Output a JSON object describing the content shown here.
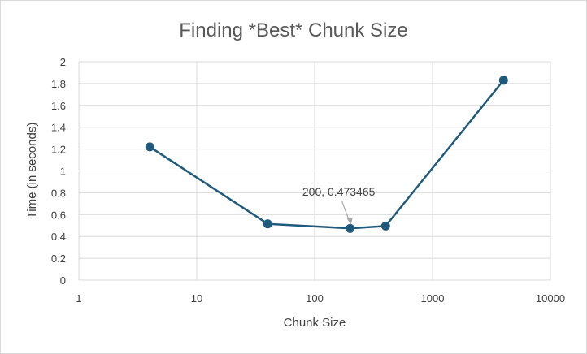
{
  "chart_data": {
    "type": "scatter",
    "title": "Finding *Best* Chunk Size",
    "xlabel": "Chunk Size",
    "ylabel": "Time (in seconds)",
    "x_scale": "log",
    "xlim": [
      1,
      10000
    ],
    "ylim": [
      0,
      2
    ],
    "x_ticks": [
      "1",
      "10",
      "100",
      "1000",
      "10000"
    ],
    "y_ticks": [
      "0",
      "0.2",
      "0.4",
      "0.6",
      "0.8",
      "1",
      "1.2",
      "1.4",
      "1.6",
      "1.8",
      "2"
    ],
    "grid": "vertical and horizontal",
    "series": [
      {
        "x": [
          4,
          40,
          200,
          400,
          4000
        ],
        "y": [
          1.22,
          0.515,
          0.473465,
          0.495,
          1.83
        ],
        "color": "#1f5a7c"
      }
    ],
    "annotation": {
      "text": "200, 0.473465",
      "x": 200,
      "y": 0.473465
    }
  }
}
